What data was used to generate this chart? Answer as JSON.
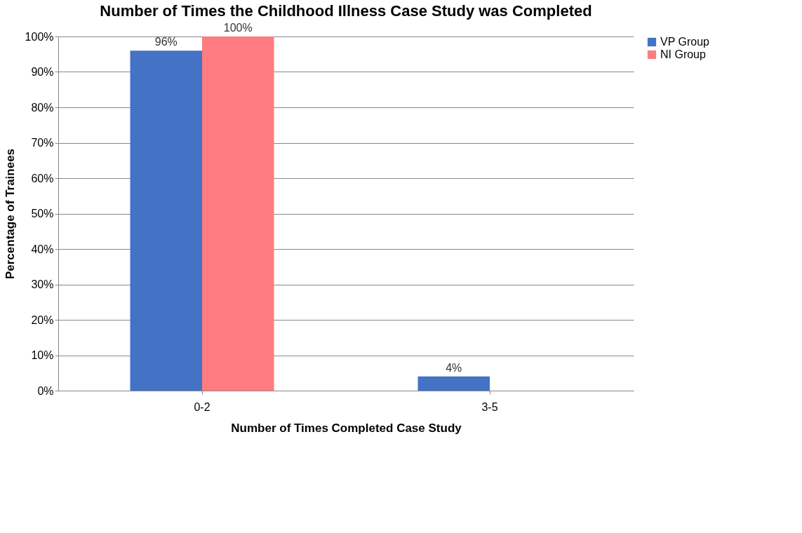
{
  "chart_data": {
    "type": "bar",
    "title": "Number of Times the Childhood Illness Case Study was Completed",
    "xlabel": "Number of Times Completed Case Study",
    "ylabel": "Percentage of Trainees",
    "categories": [
      "0-2",
      "3-5"
    ],
    "series": [
      {
        "name": "VP Group",
        "color": "#4472c4",
        "values": [
          96,
          4
        ],
        "value_labels": [
          "96%",
          "4%"
        ]
      },
      {
        "name": "NI Group",
        "color": "#ff7c80",
        "values": [
          100,
          0
        ],
        "value_labels": [
          "100%",
          null
        ]
      }
    ],
    "ylim": [
      0,
      100
    ],
    "yticks": [
      {
        "value": 0,
        "label": "0%"
      },
      {
        "value": 10,
        "label": "10%"
      },
      {
        "value": 20,
        "label": "20%"
      },
      {
        "value": 30,
        "label": "30%"
      },
      {
        "value": 40,
        "label": "40%"
      },
      {
        "value": 50,
        "label": "50%"
      },
      {
        "value": 60,
        "label": "60%"
      },
      {
        "value": 70,
        "label": "70%"
      },
      {
        "value": 80,
        "label": "80%"
      },
      {
        "value": 90,
        "label": "90%"
      },
      {
        "value": 100,
        "label": "100%"
      }
    ],
    "grid": "y",
    "legend": "right"
  }
}
